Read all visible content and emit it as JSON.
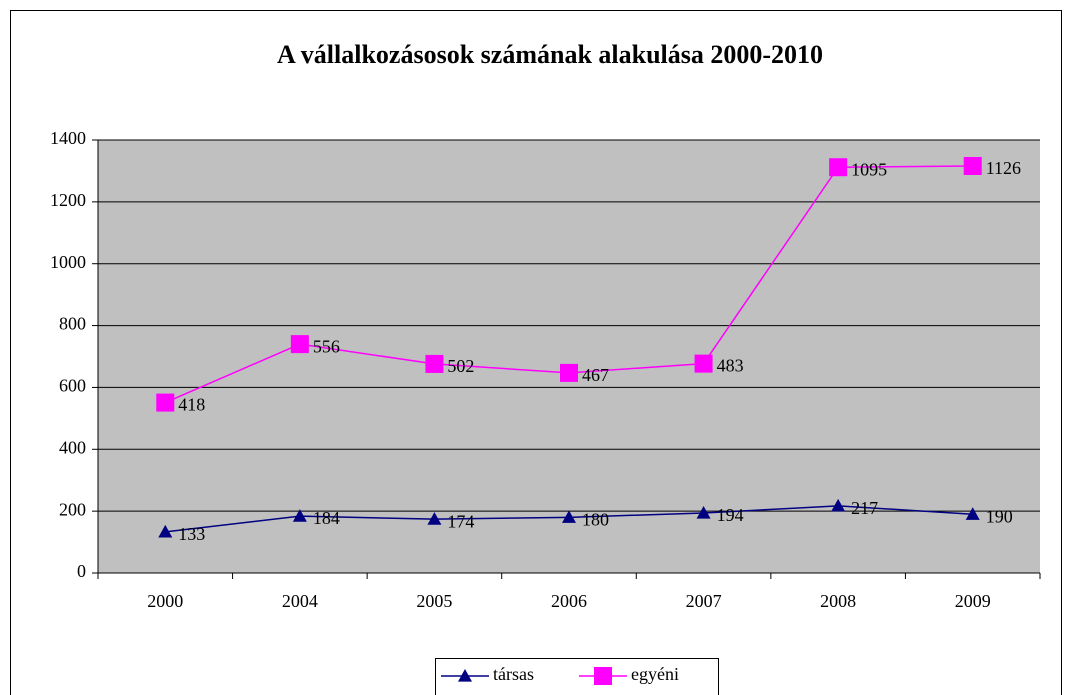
{
  "chart_data": {
    "type": "line",
    "title": "A vállalkozásosok számának alakulása 2000-2010",
    "categories": [
      "2000",
      "2004",
      "2005",
      "2006",
      "2007",
      "2008",
      "2009"
    ],
    "stacked": true,
    "series": [
      {
        "name": "társas",
        "color": "#000080",
        "marker": "triangle",
        "values": [
          133,
          184,
          174,
          180,
          194,
          217,
          190
        ]
      },
      {
        "name": "egyéni",
        "color": "#ff00ff",
        "marker": "square",
        "values": [
          418,
          556,
          502,
          467,
          483,
          1095,
          1126
        ]
      }
    ],
    "ylim": [
      0,
      1400
    ],
    "yticks": [
      0,
      200,
      400,
      600,
      800,
      1000,
      1200,
      1400
    ],
    "grid": true,
    "legend": "bottom"
  }
}
